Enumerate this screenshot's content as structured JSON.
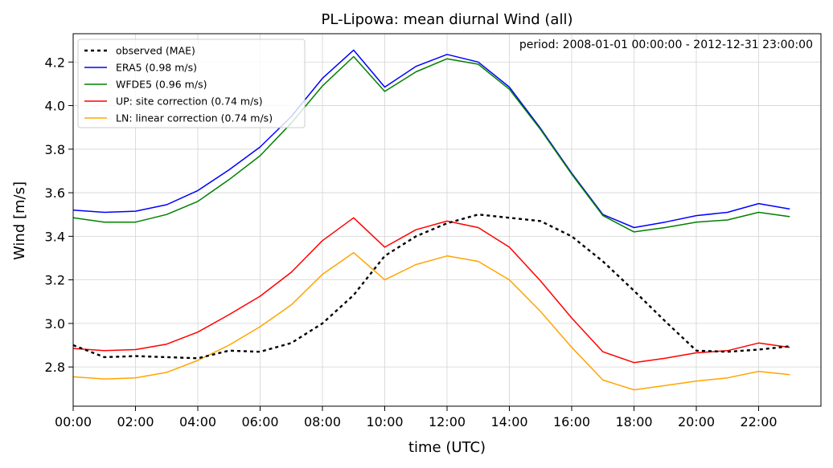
{
  "chart_data": {
    "type": "line",
    "title": "PL-Lipowa: mean diurnal Wind (all)",
    "annotation": "period: 2008-01-01 00:00:00 - 2012-12-31 23:00:00",
    "xlabel": "time (UTC)",
    "ylabel": "Wind [m/s]",
    "xlim": [
      0,
      24
    ],
    "ylim": [
      2.62,
      4.33
    ],
    "grid": true,
    "legend_position": "top-left",
    "x": [
      0,
      1,
      2,
      3,
      4,
      5,
      6,
      7,
      8,
      9,
      10,
      11,
      12,
      13,
      14,
      15,
      16,
      17,
      18,
      19,
      20,
      21,
      22,
      23
    ],
    "xticks": [
      0,
      2,
      4,
      6,
      8,
      10,
      12,
      14,
      16,
      18,
      20,
      22
    ],
    "xtick_labels": [
      "00:00",
      "02:00",
      "04:00",
      "06:00",
      "08:00",
      "10:00",
      "12:00",
      "14:00",
      "16:00",
      "18:00",
      "20:00",
      "22:00"
    ],
    "yticks": [
      2.8,
      3.0,
      3.2,
      3.4,
      3.6,
      3.8,
      4.0,
      4.2
    ],
    "ytick_labels": [
      "2.8",
      "3.0",
      "3.2",
      "3.4",
      "3.6",
      "3.8",
      "4.0",
      "4.2"
    ],
    "series": [
      {
        "name": "observed (MAE)",
        "color": "#000000",
        "dashed": true,
        "values": [
          2.9,
          2.845,
          2.85,
          2.845,
          2.84,
          2.875,
          2.87,
          2.91,
          3.0,
          3.13,
          3.31,
          3.4,
          3.46,
          3.5,
          3.485,
          3.47,
          3.4,
          3.285,
          3.15,
          3.01,
          2.875,
          2.87,
          2.88,
          2.895
        ]
      },
      {
        "name": "ERA5 (0.98 m/s)",
        "color": "#0000ff",
        "dashed": false,
        "values": [
          3.52,
          3.51,
          3.515,
          3.545,
          3.61,
          3.705,
          3.81,
          3.95,
          4.125,
          4.255,
          4.085,
          4.18,
          4.235,
          4.2,
          4.085,
          3.895,
          3.69,
          3.5,
          3.44,
          3.465,
          3.495,
          3.51,
          3.55,
          3.525
        ]
      },
      {
        "name": "WFDE5 (0.96 m/s)",
        "color": "#008000",
        "dashed": false,
        "values": [
          3.485,
          3.465,
          3.465,
          3.5,
          3.56,
          3.66,
          3.77,
          3.92,
          4.09,
          4.225,
          4.065,
          4.155,
          4.215,
          4.19,
          4.075,
          3.89,
          3.685,
          3.495,
          3.42,
          3.44,
          3.465,
          3.475,
          3.51,
          3.49
        ]
      },
      {
        "name": "UP: site correction (0.74 m/s)",
        "color": "#ff0000",
        "dashed": false,
        "values": [
          2.885,
          2.875,
          2.88,
          2.905,
          2.96,
          3.04,
          3.125,
          3.235,
          3.38,
          3.485,
          3.35,
          3.43,
          3.47,
          3.44,
          3.35,
          3.195,
          3.025,
          2.87,
          2.82,
          2.84,
          2.865,
          2.875,
          2.91,
          2.89
        ]
      },
      {
        "name": "LN: linear correction (0.74 m/s)",
        "color": "#ffa500",
        "dashed": false,
        "values": [
          2.755,
          2.745,
          2.75,
          2.775,
          2.83,
          2.9,
          2.985,
          3.085,
          3.225,
          3.325,
          3.2,
          3.27,
          3.31,
          3.285,
          3.2,
          3.055,
          2.89,
          2.74,
          2.695,
          2.715,
          2.735,
          2.75,
          2.78,
          2.765
        ]
      }
    ]
  }
}
